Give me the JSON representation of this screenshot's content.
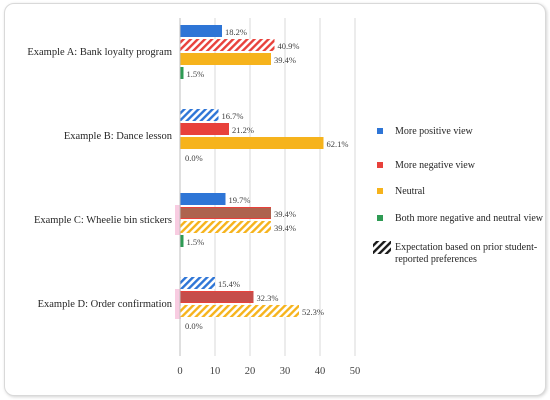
{
  "chart_data": {
    "type": "bar",
    "orientation": "horizontal",
    "categories": [
      "Example A: Bank loyalty program",
      "Example B: Dance lesson",
      "Example C: Wheelie bin stickers",
      "Example D: Order confirmation"
    ],
    "series": [
      {
        "name": "More positive view",
        "color": "#2e75d6",
        "values": [
          12,
          11,
          13,
          10
        ],
        "labels": [
          "18.2%",
          "16.7%",
          "19.7%",
          "15.4%"
        ],
        "expectation": [
          false,
          true,
          false,
          true
        ]
      },
      {
        "name": "More negative view",
        "color": "#e8413b",
        "values": [
          27,
          14,
          26,
          21
        ],
        "labels": [
          "40.9%",
          "21.2%",
          "39.4%",
          "32.3%"
        ],
        "expectation": [
          true,
          false,
          false,
          false
        ]
      },
      {
        "name": "Neutral",
        "color": "#f6b31c",
        "values": [
          26,
          41,
          26,
          34
        ],
        "labels": [
          "39.4%",
          "62.1%",
          "39.4%",
          "52.3%"
        ],
        "expectation": [
          false,
          false,
          true,
          true
        ]
      },
      {
        "name": "Both more negative and neutral view",
        "color": "#2e9b54",
        "values": [
          1,
          0,
          1,
          0
        ],
        "labels": [
          "1.5%",
          "0.0%",
          "1.5%",
          "0.0%"
        ],
        "expectation": [
          false,
          false,
          false,
          false
        ]
      }
    ],
    "overlays": [
      {
        "category": 2,
        "series": 1,
        "color": "#a36a52",
        "value": 26
      },
      {
        "category": 3,
        "series": 1,
        "color": "#c0504d",
        "value": 21
      }
    ],
    "highlights": [
      {
        "category": 2,
        "color": "#f7c6de"
      },
      {
        "category": 3,
        "color": "#f7c6de"
      }
    ],
    "xlim": [
      0,
      50
    ],
    "xticks": [
      0,
      10,
      20,
      30,
      40,
      50
    ],
    "grid": true,
    "legend": {
      "placement": "right",
      "entries": [
        {
          "label": "More positive view",
          "color": "#2e75d6",
          "style": "solid"
        },
        {
          "label": "More negative view",
          "color": "#e8413b",
          "style": "solid"
        },
        {
          "label": "Neutral",
          "color": "#f6b31c",
          "style": "solid"
        },
        {
          "label": "Both more negative and neutral view",
          "color": "#2e9b54",
          "style": "solid"
        },
        {
          "label": "Expectation based on prior student-reported preferences",
          "color": "#1a1a1a",
          "style": "hatch"
        }
      ]
    }
  }
}
